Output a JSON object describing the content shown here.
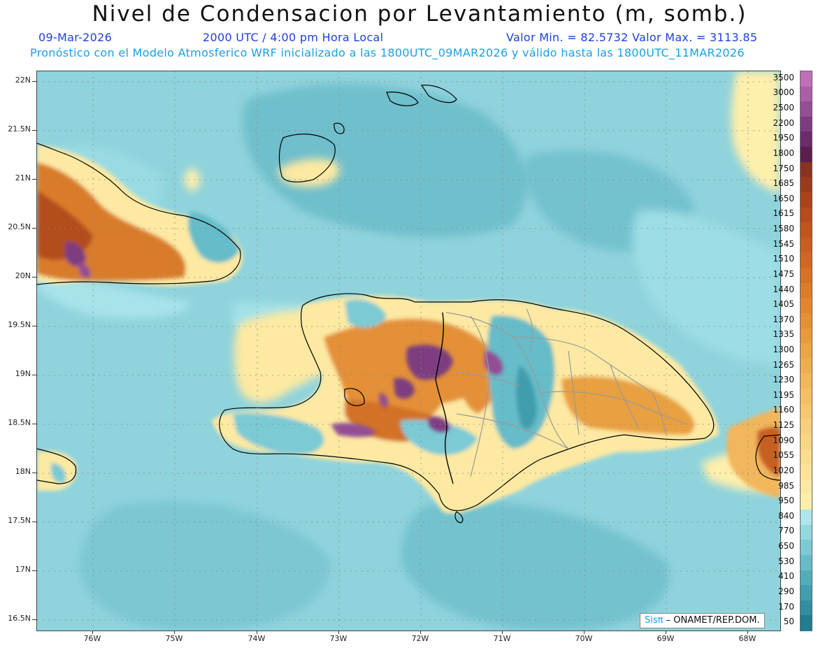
{
  "header": {
    "title": "Nivel de Condensacion por Levantamiento (m, somb.)",
    "date": "09-Mar-2026",
    "time": "2000 UTC / 4:00 pm Hora Local",
    "minmax": "Valor Min. = 82.5732  Valor Max. = 3113.85",
    "model_line": "Pronóstico con el Modelo Atmosferico WRF inicializado a las 1800UTC_09MAR2026 y válido hasta las  1800UTC_11MAR2026"
  },
  "axes": {
    "lat_labels": [
      "22N",
      "21.5N",
      "21N",
      "20.5N",
      "20N",
      "19.5N",
      "19N",
      "18.5N",
      "18N",
      "17.5N",
      "17N",
      "16.5N"
    ],
    "lon_labels": [
      "76W",
      "75W",
      "74W",
      "73W",
      "72W",
      "71W",
      "70W",
      "69W",
      "68W"
    ]
  },
  "colorbar": {
    "labels": [
      "3500",
      "3000",
      "2500",
      "2200",
      "1950",
      "1800",
      "1750",
      "1685",
      "1650",
      "1615",
      "1580",
      "1545",
      "1510",
      "1475",
      "1440",
      "1405",
      "1370",
      "1335",
      "1300",
      "1265",
      "1230",
      "1195",
      "1160",
      "1125",
      "1090",
      "1055",
      "1020",
      "985",
      "950",
      "840",
      "770",
      "650",
      "530",
      "410",
      "290",
      "170",
      "50"
    ],
    "colors": [
      "#c06fb8",
      "#ab5ea6",
      "#934e94",
      "#7d3c80",
      "#6a2c6c",
      "#5a1f4c",
      "#8a3220",
      "#9a3a1e",
      "#a8431c",
      "#b44d1c",
      "#bf561c",
      "#c65f20",
      "#cd6824",
      "#d37228",
      "#d97c2c",
      "#df8632",
      "#e49038",
      "#e89a40",
      "#eca448",
      "#efad52",
      "#f2b65c",
      "#f4bf66",
      "#f6c770",
      "#f8cf7a",
      "#f9d684",
      "#fbdd8e",
      "#fce398",
      "#fde9a2",
      "#feefac",
      "#aee6ec",
      "#94d8e0",
      "#7ccad4",
      "#66bcc8",
      "#52adbb",
      "#409eae",
      "#2f8ea0",
      "#217e92"
    ]
  },
  "credit": {
    "sis": "Sisπ",
    "text": " –  ONAMET/REP.DOM."
  }
}
